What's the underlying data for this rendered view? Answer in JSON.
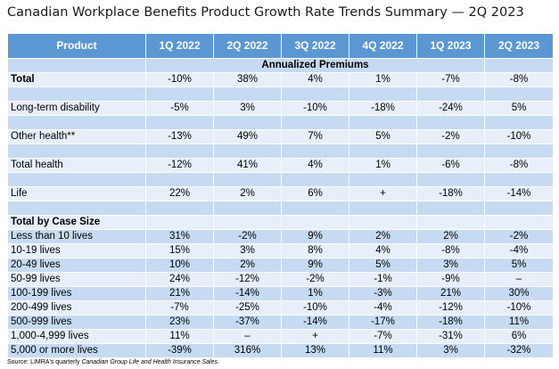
{
  "title": "Canadian Workplace Benefits Product Growth Rate Trends Summary — 2Q 2023",
  "columns": [
    "Product",
    "1Q 2022",
    "2Q 2022",
    "3Q 2022",
    "4Q 2022",
    "1Q 2023",
    "2Q 2023"
  ],
  "section_premiums": "Annualized Premiums",
  "premium_rows": [
    {
      "label": "Total",
      "values": [
        "-10%",
        "38%",
        "4%",
        "1%",
        "-7%",
        "-8%"
      ]
    },
    {
      "label": "Long-term disability",
      "values": [
        "-5%",
        "3%",
        "-10%",
        "-18%",
        "-24%",
        "5%"
      ]
    },
    {
      "label": "Other health**",
      "values": [
        "-13%",
        "49%",
        "7%",
        "5%",
        "-2%",
        "-10%"
      ]
    },
    {
      "label": "Total health",
      "values": [
        "-12%",
        "41%",
        "4%",
        "1%",
        "-6%",
        "-8%"
      ]
    },
    {
      "label": "Life",
      "values": [
        "22%",
        "2%",
        "6%",
        "+",
        "-18%",
        "-14%"
      ]
    }
  ],
  "section_case_size": "Total by Case Size",
  "case_rows": [
    {
      "label": "Less than 10 lives",
      "values": [
        "31%",
        "-2%",
        "9%",
        "2%",
        "2%",
        "-2%"
      ]
    },
    {
      "label": "10-19 lives",
      "values": [
        "15%",
        "3%",
        "8%",
        "4%",
        "-8%",
        "-4%"
      ]
    },
    {
      "label": "20-49 lives",
      "values": [
        "10%",
        "2%",
        "9%",
        "5%",
        "3%",
        "5%"
      ]
    },
    {
      "label": "50-99 lives",
      "values": [
        "24%",
        "-12%",
        "-2%",
        "-1%",
        "-9%",
        "–"
      ]
    },
    {
      "label": "100-199 lives",
      "values": [
        "21%",
        "-14%",
        "1%",
        "-3%",
        "21%",
        "30%"
      ]
    },
    {
      "label": "200-499 lives",
      "values": [
        "-7%",
        "-25%",
        "-10%",
        "-4%",
        "-12%",
        "-10%"
      ]
    },
    {
      "label": "500-999 lives",
      "values": [
        "23%",
        "-37%",
        "-14%",
        "-17%",
        "-18%",
        "11%"
      ]
    },
    {
      "label": "1,000-4,999 lives",
      "values": [
        "11%",
        "–",
        "+",
        "-7%",
        "-31%",
        "6%"
      ]
    },
    {
      "label": "5,000 or more lives",
      "values": [
        "-39%",
        "316%",
        "13%",
        "11%",
        "3%",
        "-32%"
      ]
    }
  ],
  "source_prefix": "Source: LIMRA's quarterly ",
  "source_title": "Canadian Group Life and Health Insurance Sales",
  "source_suffix": "."
}
